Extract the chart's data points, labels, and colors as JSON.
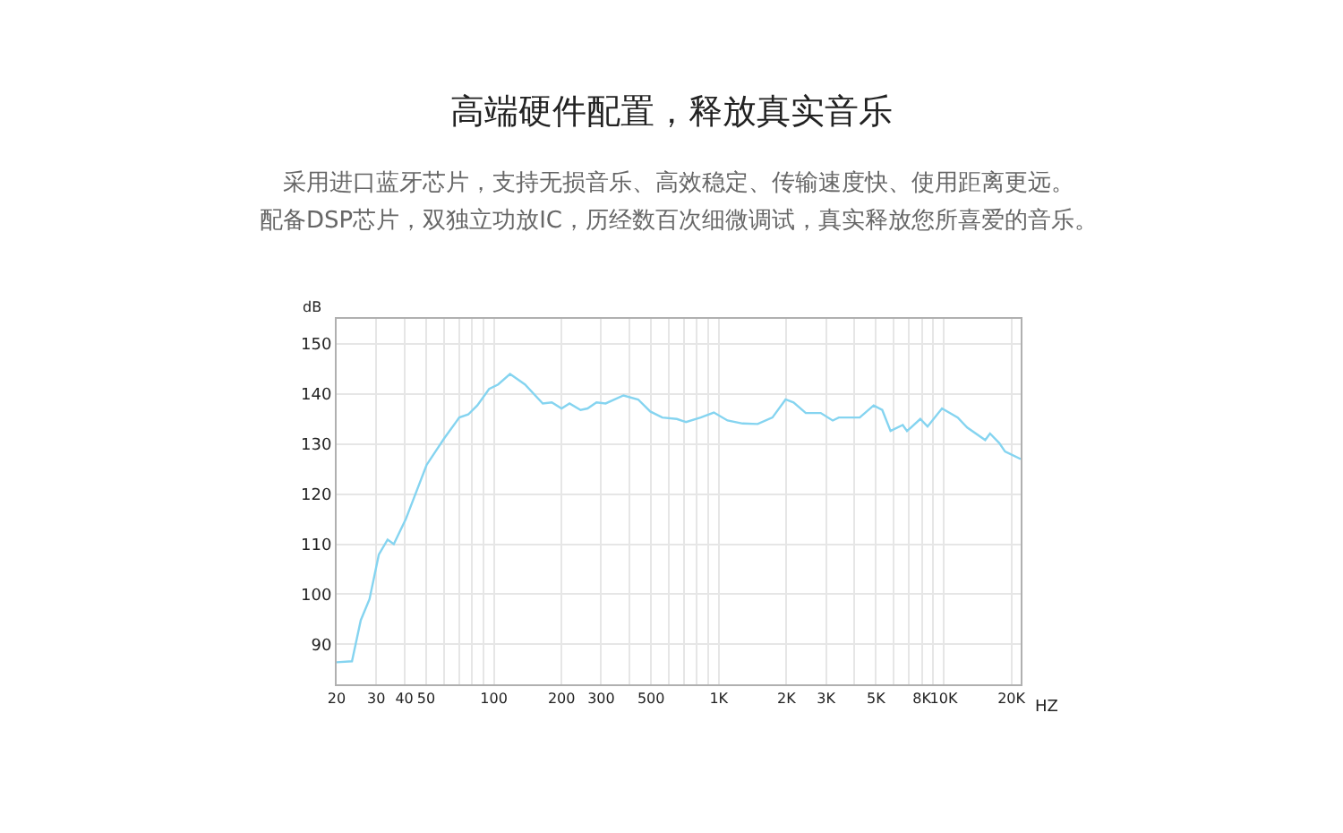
{
  "chart_data": {
    "type": "line",
    "title": "高端硬件配置，释放真实音乐",
    "subtitle": "采用进口蓝牙芯片，支持无损音乐、高效稳定、传输速度快、使用距离更远。",
    "annotations": [
      "配备DSP芯片，双独立功放IC，历经数百次细微调试，真实释放您所喜爱的音乐。"
    ],
    "xlabel": "HZ",
    "ylabel": "dB",
    "log": "x",
    "grid": true,
    "marker": "none",
    "line_style": "solid",
    "x": [
      20,
      23.4,
      25.6,
      28,
      30.8,
      33.7,
      35.9,
      40.6,
      50.2,
      55,
      60.3,
      70.2,
      76.9,
      84.4,
      95.3,
      104.5,
      118,
      137.5,
      165,
      181,
      200,
      217,
      243,
      261,
      286,
      314,
      377,
      438,
      496,
      561,
      651,
      715,
      831,
      951,
      1094,
      1276,
      1489,
      1733,
      1982,
      2151,
      2438,
      2840,
      3211,
      3418,
      4235,
      4882,
      5332,
      5804,
      6576,
      6873,
      7873,
      8477,
      9831,
      11550,
      12720,
      15300,
      16070,
      17660,
      18750,
      22000
    ],
    "series": [
      {
        "color": "#85d4f0",
        "values": [
          86.4,
          86.6,
          94.8,
          99,
          107.9,
          110.9,
          110,
          115,
          125.8,
          128.5,
          131.2,
          135.3,
          135.9,
          137.7,
          141,
          141.9,
          144,
          141.9,
          138.1,
          138.3,
          137.1,
          138.1,
          136.8,
          137.1,
          138.3,
          138.1,
          139.7,
          138.9,
          136.5,
          135.3,
          135,
          134.4,
          135.3,
          136.3,
          134.7,
          134.1,
          134,
          135.3,
          138.9,
          138.3,
          136.2,
          136.2,
          134.7,
          135.3,
          135.3,
          137.7,
          136.8,
          132.6,
          133.8,
          132.6,
          135,
          133.5,
          137.1,
          135.3,
          133.3,
          130.8,
          132.1,
          130.2,
          128.5,
          127
        ]
      }
    ],
    "xlim": [
      20,
      22000
    ],
    "ylim": [
      82,
      155
    ],
    "xticks": [
      20,
      30,
      40,
      50,
      {
        "value": 60,
        "label": null
      },
      {
        "value": 70,
        "label": null
      },
      {
        "value": 80,
        "label": null
      },
      {
        "value": 90,
        "label": null
      },
      100,
      200,
      300,
      {
        "value": 400,
        "label": null
      },
      500,
      {
        "value": 600,
        "label": null
      },
      {
        "value": 700,
        "label": null
      },
      {
        "value": 800,
        "label": null
      },
      {
        "value": 900,
        "label": null
      },
      {
        "value": 1000,
        "label": "1K"
      },
      {
        "value": 2000,
        "label": "2K"
      },
      {
        "value": 3000,
        "label": "3K"
      },
      {
        "value": 4000,
        "label": null
      },
      {
        "value": 5000,
        "label": "5K"
      },
      {
        "value": 6000,
        "label": null
      },
      {
        "value": 7000,
        "label": null
      },
      {
        "value": 8000,
        "label": "8K"
      },
      {
        "value": 9000,
        "label": null
      },
      {
        "value": 10000,
        "label": "10K"
      },
      {
        "value": 20000,
        "label": "20K"
      }
    ],
    "yticks": [
      90,
      100,
      110,
      120,
      130,
      140,
      150
    ]
  }
}
